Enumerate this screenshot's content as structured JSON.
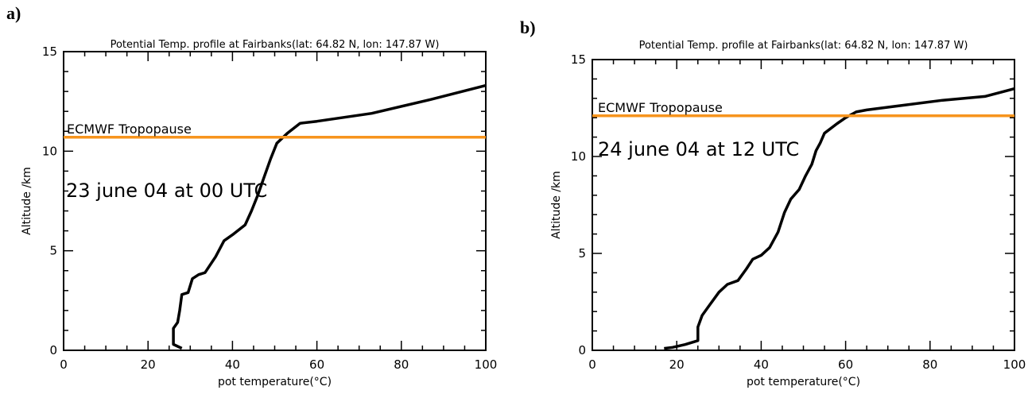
{
  "figure_labels": [
    "a)",
    "b)"
  ],
  "chart_data": [
    {
      "type": "line",
      "title": "Potential Temp. profile at Fairbanks(lat: 64.82 N, lon: 147.87 W)",
      "xlabel": "pot temperature(°C)",
      "ylabel": "Altitude /km",
      "xlim": [
        0,
        100
      ],
      "ylim": [
        0,
        15
      ],
      "x_ticks": [
        "0",
        "20",
        "40",
        "60",
        "80",
        "100"
      ],
      "y_ticks": [
        "0",
        "5",
        "10",
        "15"
      ],
      "annotation_line_label": "ECMWF Tropopause",
      "annotation_line_y": 10.7,
      "annotation_line_color": "#f7941d",
      "date_label": "23 june 04 at 00 UTC",
      "series": [
        {
          "color": "#000000",
          "points": [
            [
              28,
              0.1
            ],
            [
              26,
              0.3
            ],
            [
              26,
              1.1
            ],
            [
              27,
              1.4
            ],
            [
              27.5,
              2.0
            ],
            [
              28,
              2.8
            ],
            [
              29.5,
              2.9
            ],
            [
              30.5,
              3.6
            ],
            [
              32,
              3.8
            ],
            [
              33.5,
              3.9
            ],
            [
              36,
              4.7
            ],
            [
              38,
              5.5
            ],
            [
              40,
              5.8
            ],
            [
              43,
              6.3
            ],
            [
              44.5,
              7.0
            ],
            [
              46,
              7.8
            ],
            [
              47.5,
              8.7
            ],
            [
              49,
              9.6
            ],
            [
              50.5,
              10.4
            ],
            [
              53,
              10.9
            ],
            [
              56,
              11.4
            ],
            [
              60,
              11.5
            ],
            [
              73,
              11.9
            ],
            [
              87,
              12.6
            ],
            [
              100,
              13.3
            ]
          ]
        }
      ]
    },
    {
      "type": "line",
      "title": "Potential Temp. profile at Fairbanks(lat: 64.82 N, lon: 147.87 W)",
      "xlabel": "pot temperature(°C)",
      "ylabel": "Altitude /km",
      "xlim": [
        0,
        100
      ],
      "ylim": [
        0,
        15
      ],
      "x_ticks": [
        "0",
        "20",
        "40",
        "60",
        "80",
        "100"
      ],
      "y_ticks": [
        "0",
        "5",
        "10",
        "15"
      ],
      "annotation_line_label": "ECMWF Tropopause",
      "annotation_line_y": 12.1,
      "annotation_line_color": "#f7941d",
      "date_label": "24 june 04 at 12 UTC",
      "series": [
        {
          "color": "#000000",
          "points": [
            [
              17,
              0.1
            ],
            [
              19,
              0.15
            ],
            [
              22,
              0.3
            ],
            [
              25,
              0.5
            ],
            [
              25,
              1.2
            ],
            [
              26,
              1.8
            ],
            [
              28,
              2.4
            ],
            [
              30,
              3.0
            ],
            [
              32,
              3.4
            ],
            [
              34.5,
              3.6
            ],
            [
              36.5,
              4.2
            ],
            [
              38,
              4.7
            ],
            [
              40,
              4.9
            ],
            [
              42,
              5.3
            ],
            [
              44,
              6.1
            ],
            [
              45.5,
              7.1
            ],
            [
              47,
              7.8
            ],
            [
              49,
              8.3
            ],
            [
              50.5,
              9.0
            ],
            [
              52,
              9.6
            ],
            [
              53,
              10.3
            ],
            [
              54,
              10.7
            ],
            [
              55,
              11.2
            ],
            [
              58,
              11.7
            ],
            [
              60,
              12.0
            ],
            [
              62.5,
              12.3
            ],
            [
              65,
              12.4
            ],
            [
              72,
              12.6
            ],
            [
              83,
              12.9
            ],
            [
              93,
              13.1
            ],
            [
              100,
              13.5
            ]
          ]
        }
      ]
    }
  ]
}
